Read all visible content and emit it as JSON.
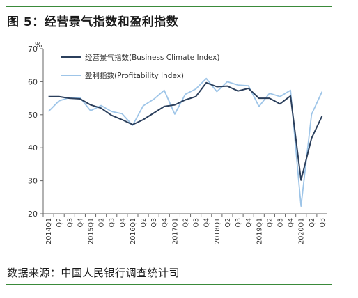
{
  "header": {
    "title": "图 5：经营景气指数和盈利指数"
  },
  "footer": {
    "source": "数据来源：中国人民银行调查统计司"
  },
  "colors": {
    "rule": "#3a8a3a",
    "series_dark": "#2b3f5c",
    "series_light": "#9ec5e8"
  },
  "chart_data": {
    "type": "line",
    "ylabel": "%",
    "ylim": [
      20,
      70
    ],
    "yticks": [
      20,
      30,
      40,
      50,
      60,
      70
    ],
    "x": [
      "2014Q1",
      "Q2",
      "Q3",
      "Q4",
      "2015Q1",
      "Q2",
      "Q3",
      "Q4",
      "2016Q1",
      "Q2",
      "Q3",
      "Q4",
      "2017Q1",
      "Q2",
      "Q3",
      "Q4",
      "2018Q1",
      "Q2",
      "Q3",
      "Q4",
      "2019Q1",
      "Q2",
      "Q3",
      "Q4",
      "2020Q1",
      "Q2",
      "Q3"
    ],
    "legend_position": "top-left",
    "series": [
      {
        "name": "经营景气指数(Business Climate Index)",
        "values": [
          55.5,
          55.5,
          55.0,
          54.8,
          53.0,
          52.0,
          49.8,
          48.5,
          47.0,
          48.5,
          50.5,
          52.5,
          53.0,
          54.5,
          55.5,
          59.7,
          58.5,
          58.7,
          57.2,
          58.0,
          55.0,
          55.0,
          53.3,
          55.7,
          30.2,
          42.9,
          49.6
        ]
      },
      {
        "name": "盈利指数(Profitability Index)",
        "values": [
          51.0,
          54.2,
          55.2,
          55.2,
          51.2,
          52.8,
          51.0,
          50.3,
          46.8,
          52.7,
          54.7,
          57.4,
          50.2,
          56.2,
          57.8,
          61.0,
          57.0,
          60.0,
          59.0,
          58.8,
          52.5,
          56.5,
          55.5,
          57.4,
          22.3,
          50.1,
          57.0
        ]
      }
    ]
  }
}
